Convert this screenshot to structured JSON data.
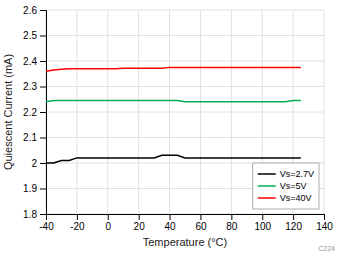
{
  "chart_data": {
    "type": "line",
    "xlabel": "Temperature (°C)",
    "ylabel": "Quiescent Current (mA)",
    "xlim": [
      -40,
      140
    ],
    "ylim": [
      1.8,
      2.6
    ],
    "xticks": [
      -40,
      -20,
      0,
      20,
      40,
      60,
      80,
      100,
      120,
      140
    ],
    "yticks": [
      1.8,
      1.9,
      2,
      2.1,
      2.2,
      2.3,
      2.4,
      2.5,
      2.6
    ],
    "x": [
      -40,
      -35,
      -30,
      -25,
      -20,
      -15,
      -10,
      -5,
      0,
      5,
      10,
      15,
      20,
      25,
      30,
      35,
      40,
      45,
      50,
      55,
      60,
      65,
      70,
      75,
      80,
      85,
      90,
      95,
      100,
      105,
      110,
      115,
      120,
      125
    ],
    "series": [
      {
        "name": "Vs=2.7V",
        "color": "#000000",
        "values": [
          2.0,
          2.0,
          2.01,
          2.01,
          2.02,
          2.02,
          2.02,
          2.02,
          2.02,
          2.02,
          2.02,
          2.02,
          2.02,
          2.02,
          2.02,
          2.03,
          2.03,
          2.03,
          2.02,
          2.02,
          2.02,
          2.02,
          2.02,
          2.02,
          2.02,
          2.02,
          2.02,
          2.02,
          2.02,
          2.02,
          2.02,
          2.02,
          2.02,
          2.02
        ]
      },
      {
        "name": "Vs=5V",
        "color": "#00b050",
        "values": [
          2.24,
          2.245,
          2.245,
          2.245,
          2.245,
          2.245,
          2.245,
          2.245,
          2.245,
          2.245,
          2.245,
          2.245,
          2.245,
          2.245,
          2.245,
          2.245,
          2.245,
          2.245,
          2.24,
          2.24,
          2.24,
          2.24,
          2.24,
          2.24,
          2.24,
          2.24,
          2.24,
          2.24,
          2.24,
          2.24,
          2.24,
          2.24,
          2.245,
          2.245
        ]
      },
      {
        "name": "Vs=40V",
        "color": "#ff0000",
        "values": [
          2.36,
          2.365,
          2.368,
          2.37,
          2.37,
          2.37,
          2.37,
          2.37,
          2.37,
          2.37,
          2.372,
          2.372,
          2.372,
          2.372,
          2.372,
          2.372,
          2.375,
          2.375,
          2.375,
          2.375,
          2.375,
          2.375,
          2.375,
          2.375,
          2.375,
          2.375,
          2.375,
          2.375,
          2.375,
          2.375,
          2.375,
          2.375,
          2.375,
          2.375
        ]
      }
    ],
    "grid": true,
    "legend": "lower right",
    "annotations": [
      "C224"
    ]
  }
}
